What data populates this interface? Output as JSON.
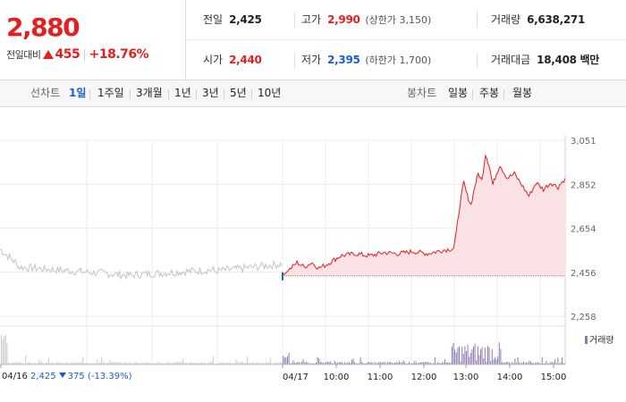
{
  "quote": {
    "price": "2,880",
    "change_label": "전일대비",
    "change_value": "455",
    "change_percent": "+18.76%"
  },
  "stats": {
    "prev_close_label": "전일",
    "prev_close": "2,425",
    "high_label": "고가",
    "high": "2,990",
    "upper_limit": "(상한가 3,150)",
    "volume_label": "거래량",
    "volume": "6,638,271",
    "open_label": "시가",
    "open": "2,440",
    "low_label": "저가",
    "low": "2,395",
    "lower_limit": "(하한가 1,700)",
    "trade_value_label": "거래대금",
    "trade_value": "18,408 백만"
  },
  "tabs": {
    "line_label": "선차트",
    "line": [
      "1일",
      "1주일",
      "3개월",
      "1년",
      "3년",
      "5년",
      "10년"
    ],
    "active_line": "1일",
    "candle_label": "봉차트",
    "candle": [
      "일봉",
      "주봉",
      "월봉"
    ]
  },
  "prev_day": {
    "date": "04/16",
    "close": "2,425",
    "change": "375",
    "percent": "(-13.39%)"
  },
  "volume_legend": "거래량",
  "colors": {
    "up": "#e51e1e",
    "down": "#1a5fd0",
    "prev_line": "#c4c4c4",
    "area": "#fbe3e5",
    "volume": "#8e7bb0"
  },
  "chart_data": {
    "type": "line",
    "yticks": [
      "3,051",
      "2,852",
      "2,654",
      "2,456",
      "2,258"
    ],
    "xticks": [
      "04/16",
      "04/17",
      "10:00",
      "11:00",
      "12:00",
      "13:00",
      "14:00",
      "15:00"
    ],
    "ylim": [
      2258,
      3051
    ],
    "grid": true,
    "baseline": 2440,
    "series": [
      {
        "time": [
          "09:00",
          "09:10",
          "09:20",
          "09:30",
          "09:40",
          "09:50",
          "10:00",
          "10:20",
          "10:40",
          "11:00",
          "11:20",
          "11:40",
          "12:00",
          "12:20",
          "12:40",
          "12:50",
          "12:56",
          "13:00",
          "13:05",
          "13:10",
          "13:15",
          "13:20",
          "13:25",
          "13:30",
          "13:35",
          "13:40",
          "13:45",
          "13:50",
          "13:55",
          "14:00",
          "14:10",
          "14:20",
          "14:30",
          "14:40",
          "14:50",
          "15:00",
          "15:10",
          "15:20",
          "15:30"
        ],
        "values": [
          2440,
          2470,
          2500,
          2480,
          2500,
          2475,
          2490,
          2530,
          2540,
          2530,
          2545,
          2540,
          2550,
          2540,
          2555,
          2560,
          2565,
          2640,
          2770,
          2860,
          2800,
          2760,
          2840,
          2900,
          2870,
          2990,
          2940,
          2850,
          2900,
          2940,
          2880,
          2900,
          2850,
          2800,
          2860,
          2830,
          2860,
          2840,
          2880
        ]
      }
    ]
  }
}
